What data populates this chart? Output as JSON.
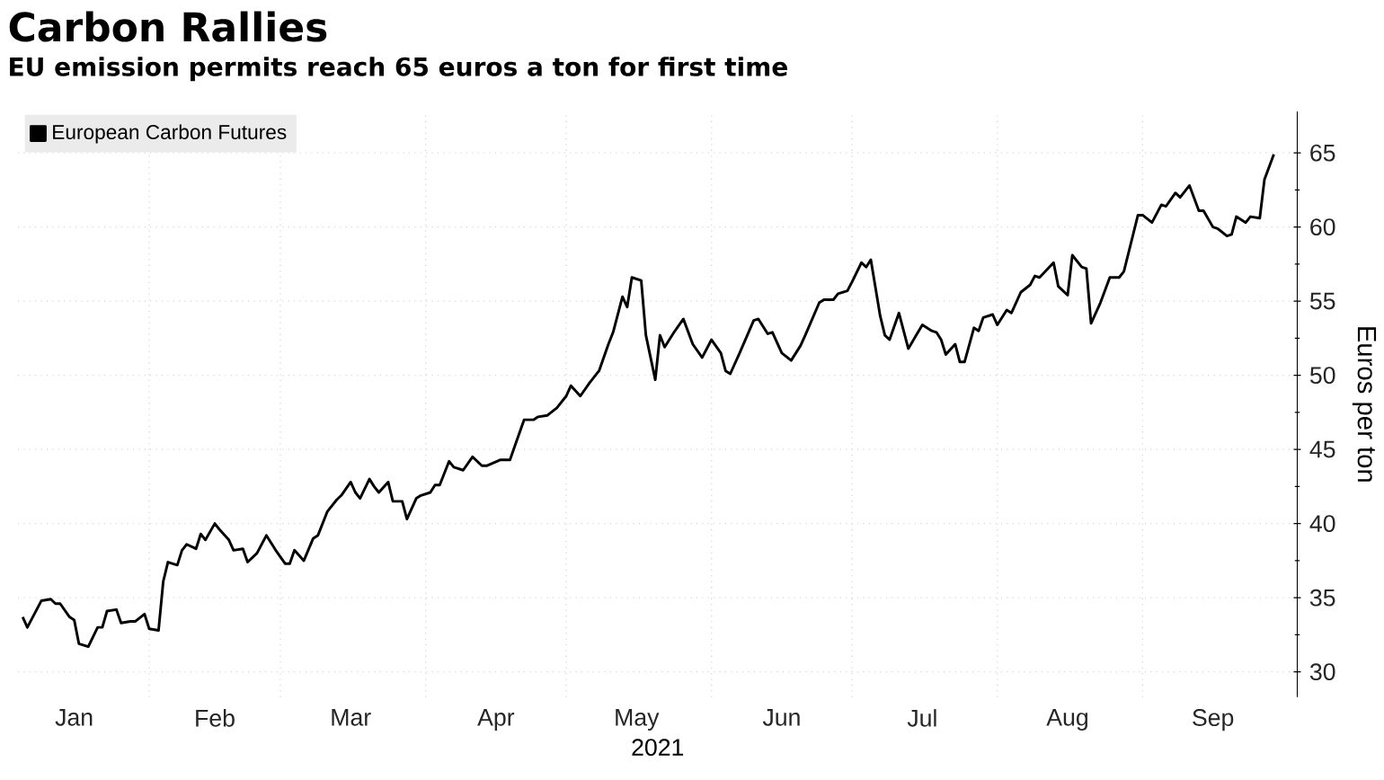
{
  "chart_data": {
    "type": "line",
    "title": "Carbon Rallies",
    "subtitle": "EU emission permits reach 65 euros a ton for first time",
    "xlabel": "2021",
    "ylabel": "Euros per ton",
    "x": [
      "2021-01-05",
      "2021-01-06",
      "2021-01-09",
      "2021-01-11",
      "2021-01-12",
      "2021-01-13",
      "2021-01-15",
      "2021-01-16",
      "2021-01-17",
      "2021-01-19",
      "2021-01-21",
      "2021-01-22",
      "2021-01-23",
      "2021-01-25",
      "2021-01-26",
      "2021-01-28",
      "2021-01-29",
      "2021-01-31",
      "2021-02-01",
      "2021-02-03",
      "2021-02-04",
      "2021-02-05",
      "2021-02-07",
      "2021-02-08",
      "2021-02-09",
      "2021-02-11",
      "2021-02-12",
      "2021-02-13",
      "2021-02-15",
      "2021-02-16",
      "2021-02-18",
      "2021-02-19",
      "2021-02-21",
      "2021-02-22",
      "2021-02-24",
      "2021-02-26",
      "2021-02-28",
      "2021-03-02",
      "2021-03-03",
      "2021-03-04",
      "2021-03-06",
      "2021-03-08",
      "2021-03-09",
      "2021-03-11",
      "2021-03-13",
      "2021-03-14",
      "2021-03-16",
      "2021-03-17",
      "2021-03-18",
      "2021-03-20",
      "2021-03-21",
      "2021-03-22",
      "2021-03-24",
      "2021-03-25",
      "2021-03-27",
      "2021-03-28",
      "2021-03-30",
      "2021-03-31",
      "2021-04-02",
      "2021-04-03",
      "2021-04-04",
      "2021-04-06",
      "2021-04-07",
      "2021-04-09",
      "2021-04-11",
      "2021-04-13",
      "2021-04-14",
      "2021-04-17",
      "2021-04-19",
      "2021-04-20",
      "2021-04-22",
      "2021-04-24",
      "2021-04-25",
      "2021-04-27",
      "2021-04-29",
      "2021-05-01",
      "2021-05-02",
      "2021-05-04",
      "2021-05-06",
      "2021-05-08",
      "2021-05-10",
      "2021-05-11",
      "2021-05-13",
      "2021-05-14",
      "2021-05-15",
      "2021-05-17",
      "2021-05-18",
      "2021-05-20",
      "2021-05-21",
      "2021-05-22",
      "2021-05-24",
      "2021-05-26",
      "2021-05-28",
      "2021-05-30",
      "2021-06-01",
      "2021-06-03",
      "2021-06-04",
      "2021-06-05",
      "2021-06-07",
      "2021-06-10",
      "2021-06-11",
      "2021-06-13",
      "2021-06-14",
      "2021-06-16",
      "2021-06-18",
      "2021-06-20",
      "2021-06-21",
      "2021-06-24",
      "2021-06-25",
      "2021-06-27",
      "2021-06-28",
      "2021-06-30",
      "2021-07-01",
      "2021-07-03",
      "2021-07-04",
      "2021-07-05",
      "2021-07-07",
      "2021-07-08",
      "2021-07-09",
      "2021-07-11",
      "2021-07-13",
      "2021-07-16",
      "2021-07-18",
      "2021-07-19",
      "2021-07-20",
      "2021-07-21",
      "2021-07-23",
      "2021-07-24",
      "2021-07-25",
      "2021-07-27",
      "2021-07-28",
      "2021-07-29",
      "2021-07-31",
      "2021-08-01",
      "2021-08-03",
      "2021-08-04",
      "2021-08-06",
      "2021-08-08",
      "2021-08-09",
      "2021-08-10",
      "2021-08-13",
      "2021-08-14",
      "2021-08-16",
      "2021-08-17",
      "2021-08-19",
      "2021-08-20",
      "2021-08-21",
      "2021-08-23",
      "2021-08-25",
      "2021-08-27",
      "2021-08-28",
      "2021-08-31",
      "2021-09-01",
      "2021-09-03",
      "2021-09-05",
      "2021-09-06",
      "2021-09-08",
      "2021-09-09",
      "2021-09-11",
      "2021-09-13",
      "2021-09-14",
      "2021-09-16",
      "2021-09-17",
      "2021-09-19",
      "2021-09-20",
      "2021-09-21",
      "2021-09-23",
      "2021-09-24",
      "2021-09-26",
      "2021-09-27",
      "2021-09-29"
    ],
    "series": [
      {
        "name": "European Carbon Futures",
        "color": "#000000",
        "values": [
          33.7,
          33.0,
          34.8,
          34.9,
          34.6,
          34.6,
          33.7,
          33.5,
          31.9,
          31.7,
          33.0,
          33.0,
          34.1,
          34.2,
          33.3,
          33.4,
          33.4,
          33.9,
          32.9,
          32.8,
          36.1,
          37.4,
          37.2,
          38.2,
          38.6,
          38.3,
          39.3,
          38.9,
          40.0,
          39.6,
          38.9,
          38.2,
          38.3,
          37.4,
          38.0,
          39.2,
          38.2,
          37.3,
          37.3,
          38.2,
          37.5,
          39.0,
          39.2,
          40.8,
          41.6,
          41.9,
          42.8,
          42.1,
          41.7,
          43.0,
          42.5,
          42.1,
          42.8,
          41.5,
          41.5,
          40.3,
          41.7,
          41.9,
          42.1,
          42.6,
          42.6,
          44.2,
          43.8,
          43.6,
          44.5,
          43.9,
          43.9,
          44.3,
          44.3,
          45.2,
          47.0,
          47.0,
          47.2,
          47.3,
          47.8,
          48.6,
          49.3,
          48.6,
          49.5,
          50.3,
          52.1,
          52.9,
          55.3,
          54.6,
          56.6,
          56.4,
          52.7,
          49.7,
          52.7,
          51.9,
          52.9,
          53.8,
          52.1,
          51.2,
          52.4,
          51.5,
          50.3,
          50.1,
          51.5,
          53.7,
          53.8,
          52.8,
          52.9,
          51.5,
          51.0,
          52.0,
          52.7,
          54.9,
          55.1,
          55.1,
          55.5,
          55.7,
          56.3,
          57.6,
          57.3,
          57.8,
          54.0,
          52.7,
          52.4,
          54.2,
          51.8,
          53.4,
          53.0,
          52.9,
          52.4,
          51.4,
          52.1,
          50.9,
          50.9,
          53.2,
          53.0,
          53.9,
          54.1,
          53.4,
          54.4,
          54.2,
          55.6,
          56.1,
          56.7,
          56.6,
          57.6,
          56.0,
          55.4,
          58.1,
          57.3,
          57.2,
          53.5,
          54.9,
          56.6,
          56.6,
          57.0,
          60.8,
          60.8,
          60.3,
          61.5,
          61.4,
          62.3,
          62.0,
          62.8,
          61.1,
          61.1,
          60.0,
          59.9,
          59.4,
          59.5,
          60.7,
          60.3,
          60.7,
          60.6,
          63.2,
          64.9
        ]
      }
    ],
    "xlim": [
      "2021-01-04",
      "2021-10-04"
    ],
    "xticks": [
      {
        "value": "2021-01-16",
        "label": "Jan"
      },
      {
        "value": "2021-02-01",
        "label": null
      },
      {
        "value": "2021-02-15",
        "label": "Feb"
      },
      {
        "value": "2021-03-01",
        "label": null
      },
      {
        "value": "2021-03-16",
        "label": "Mar"
      },
      {
        "value": "2021-04-01",
        "label": null
      },
      {
        "value": "2021-04-16",
        "label": "Apr"
      },
      {
        "value": "2021-05-01",
        "label": null
      },
      {
        "value": "2021-05-16",
        "label": "May"
      },
      {
        "value": "2021-06-01",
        "label": null
      },
      {
        "value": "2021-06-16",
        "label": "Jun"
      },
      {
        "value": "2021-07-01",
        "label": null
      },
      {
        "value": "2021-07-16",
        "label": "Jul"
      },
      {
        "value": "2021-08-01",
        "label": null
      },
      {
        "value": "2021-08-16",
        "label": "Aug"
      },
      {
        "value": "2021-09-01",
        "label": null
      },
      {
        "value": "2021-09-16",
        "label": "Sep"
      }
    ],
    "ylim": [
      28.3,
      67.8
    ],
    "yticks": [
      30,
      35,
      40,
      45,
      50,
      55,
      60,
      65
    ],
    "grid": true,
    "legend": "top left",
    "marker": "none",
    "line_style": "solid"
  }
}
